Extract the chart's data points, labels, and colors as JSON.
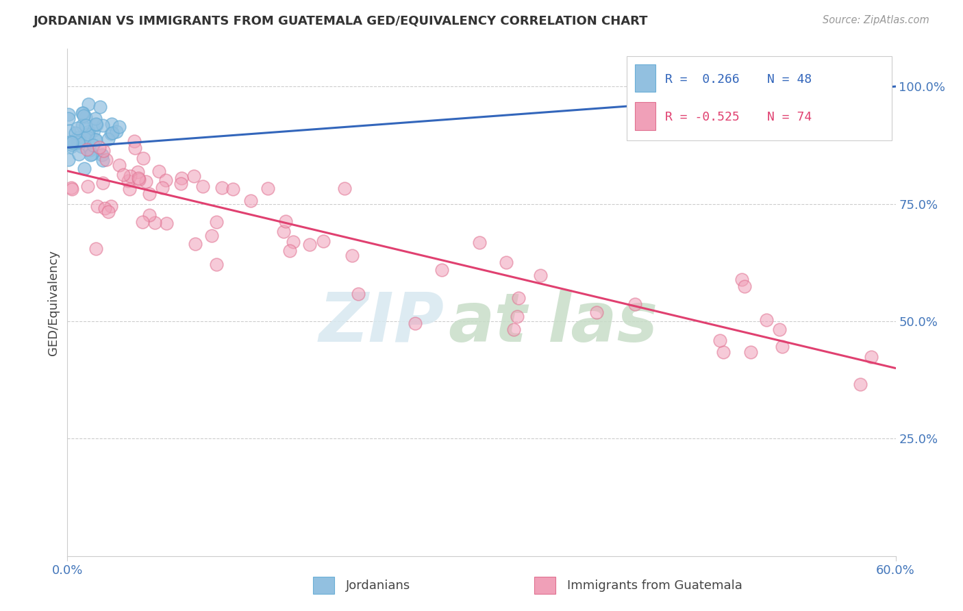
{
  "title": "JORDANIAN VS IMMIGRANTS FROM GUATEMALA GED/EQUIVALENCY CORRELATION CHART",
  "source": "Source: ZipAtlas.com",
  "xlabel_start": "0.0%",
  "xlabel_end": "60.0%",
  "ylabel": "GED/Equivalency",
  "ytick_labels": [
    "25.0%",
    "50.0%",
    "75.0%",
    "100.0%"
  ],
  "ytick_values": [
    0.25,
    0.5,
    0.75,
    1.0
  ],
  "xmin": 0.0,
  "xmax": 0.6,
  "ymin": 0.0,
  "ymax": 1.08,
  "blue_color": "#92c0e0",
  "blue_edge_color": "#6aaed6",
  "pink_color": "#f0a0b8",
  "pink_edge_color": "#e07090",
  "blue_line_color": "#3366bb",
  "pink_line_color": "#e04070",
  "legend_r_blue": "R =  0.266",
  "legend_n_blue": "N = 48",
  "legend_r_pink": "R = -0.525",
  "legend_n_pink": "N = 74",
  "legend_text_color_blue": "#3366bb",
  "legend_text_color_pink": "#e04070",
  "watermark_zip_color": "#d8e8f0",
  "watermark_atlas_color": "#c8ddc8",
  "bottom_legend_jordanians": "Jordanians",
  "bottom_legend_guatemala": "Immigrants from Guatemala",
  "blue_line_x": [
    0.0,
    0.6
  ],
  "blue_line_y": [
    0.87,
    1.0
  ],
  "pink_line_x": [
    0.0,
    0.6
  ],
  "pink_line_y": [
    0.82,
    0.4
  ]
}
